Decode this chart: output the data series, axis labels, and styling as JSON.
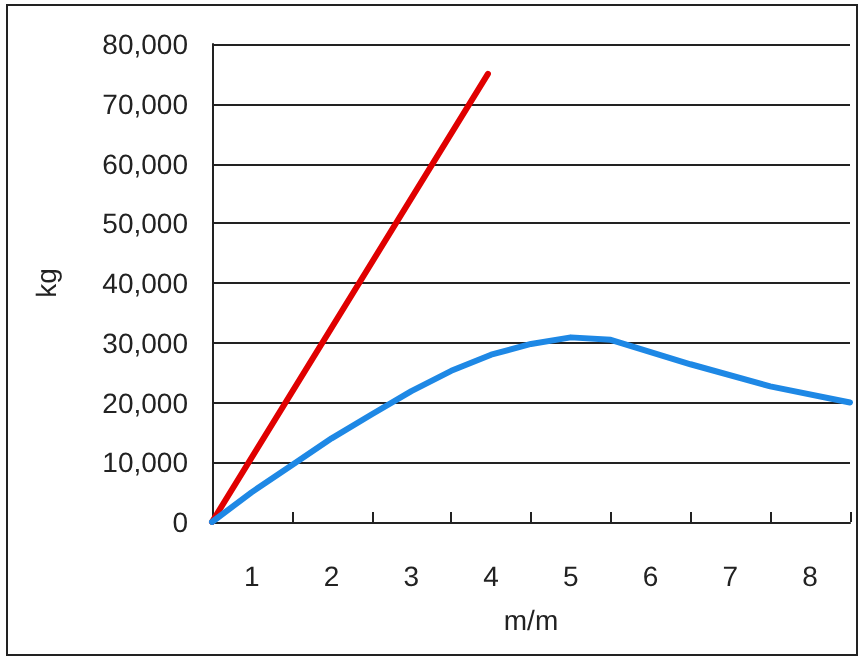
{
  "chart_data": {
    "type": "line",
    "xlabel": "m/m",
    "ylabel": "kg",
    "xlim": [
      0,
      8
    ],
    "xticks": [
      {
        "value": 0,
        "label": null
      },
      {
        "value": 0.5,
        "label": "1"
      },
      {
        "value": 1,
        "label": null
      },
      {
        "value": 1.5,
        "label": "2"
      },
      {
        "value": 2,
        "label": null
      },
      {
        "value": 2.5,
        "label": "3"
      },
      {
        "value": 3,
        "label": null
      },
      {
        "value": 3.5,
        "label": "4"
      },
      {
        "value": 4,
        "label": null
      },
      {
        "value": 4.5,
        "label": "5"
      },
      {
        "value": 5,
        "label": null
      },
      {
        "value": 5.5,
        "label": "6"
      },
      {
        "value": 6,
        "label": null
      },
      {
        "value": 6.5,
        "label": "7"
      },
      {
        "value": 7,
        "label": null
      },
      {
        "value": 7.5,
        "label": "8"
      },
      {
        "value": 8,
        "label": null
      }
    ],
    "ylim": [
      0,
      80000
    ],
    "yticks": [
      {
        "value": 0,
        "label": "0"
      },
      {
        "value": 10000,
        "label": "10,000"
      },
      {
        "value": 20000,
        "label": "20,000"
      },
      {
        "value": 30000,
        "label": "30,000"
      },
      {
        "value": 40000,
        "label": "40,000"
      },
      {
        "value": 50000,
        "label": "50,000"
      },
      {
        "value": 60000,
        "label": "60,000"
      },
      {
        "value": 70000,
        "label": "70,000"
      },
      {
        "value": 80000,
        "label": "80,000"
      }
    ],
    "grid": "y",
    "marker": "none",
    "line_style": "solid",
    "series": [
      {
        "color": "#e00000",
        "x": [
          0,
          3.46
        ],
        "values": [
          0,
          75000
        ]
      },
      {
        "color": "#1e88e5",
        "x": [
          0,
          0.5,
          1,
          1.5,
          2,
          2.5,
          3,
          3.5,
          4,
          4.5,
          5,
          6,
          7,
          8
        ],
        "values": [
          0,
          5000,
          9500,
          14000,
          18000,
          21900,
          25300,
          28000,
          29800,
          30900,
          30500,
          26400,
          22700,
          20000
        ]
      }
    ]
  }
}
